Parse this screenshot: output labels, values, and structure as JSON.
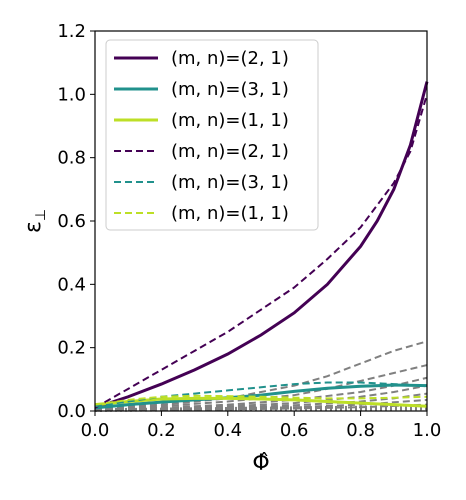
{
  "chart_data": {
    "type": "line",
    "xlabel": "Φ̂",
    "ylabel": "ε",
    "ylabel_subscript": "⊥",
    "xlim": [
      0.0,
      1.0
    ],
    "ylim": [
      0.0,
      1.2
    ],
    "x_ticks": [
      "0.0",
      "0.2",
      "0.4",
      "0.6",
      "0.8",
      "1.0"
    ],
    "y_ticks": [
      "0.0",
      "0.2",
      "0.4",
      "0.6",
      "0.8",
      "1.0",
      "1.2"
    ],
    "grid": false,
    "legend_position": "top-left",
    "legend": [
      {
        "label": "(m, n)=(2, 1)",
        "style": "solid",
        "color": "#440154"
      },
      {
        "label": "(m, n)=(3, 1)",
        "style": "solid",
        "color": "#21918c"
      },
      {
        "label": "(m, n)=(1, 1)",
        "style": "solid",
        "color": "#bddf26"
      },
      {
        "label": "(m, n)=(2, 1)",
        "style": "dashed",
        "color": "#440154"
      },
      {
        "label": "(m, n)=(3, 1)",
        "style": "dashed",
        "color": "#21918c"
      },
      {
        "label": "(m, n)=(1, 1)",
        "style": "dashed",
        "color": "#bddf26"
      }
    ],
    "series": [
      {
        "name": "(m, n)=(2, 1)",
        "style": "solid",
        "color": "#440154",
        "width": 3,
        "x": [
          0.0,
          0.1,
          0.2,
          0.3,
          0.4,
          0.5,
          0.6,
          0.7,
          0.8,
          0.85,
          0.9,
          0.95,
          1.0
        ],
        "y": [
          0.01,
          0.045,
          0.085,
          0.13,
          0.18,
          0.24,
          0.31,
          0.4,
          0.52,
          0.6,
          0.7,
          0.84,
          1.04
        ]
      },
      {
        "name": "(m, n)=(3, 1)",
        "style": "solid",
        "color": "#21918c",
        "width": 3,
        "x": [
          0.0,
          0.1,
          0.2,
          0.3,
          0.4,
          0.5,
          0.6,
          0.7,
          0.8,
          0.9,
          1.0
        ],
        "y": [
          0.01,
          0.02,
          0.028,
          0.035,
          0.042,
          0.05,
          0.062,
          0.072,
          0.078,
          0.082,
          0.08
        ]
      },
      {
        "name": "(m, n)=(1, 1)",
        "style": "solid",
        "color": "#bddf26",
        "width": 3,
        "x": [
          0.0,
          0.1,
          0.2,
          0.3,
          0.4,
          0.5,
          0.6,
          0.7,
          0.8,
          0.9,
          1.0
        ],
        "y": [
          0.02,
          0.03,
          0.038,
          0.04,
          0.04,
          0.038,
          0.035,
          0.03,
          0.025,
          0.02,
          0.015
        ]
      },
      {
        "name": "(m, n)=(2, 1)",
        "style": "dashed",
        "color": "#440154",
        "width": 2,
        "x": [
          0.0,
          0.1,
          0.2,
          0.3,
          0.4,
          0.5,
          0.6,
          0.7,
          0.8,
          0.9,
          0.95,
          1.0
        ],
        "y": [
          0.01,
          0.07,
          0.13,
          0.19,
          0.25,
          0.32,
          0.39,
          0.48,
          0.58,
          0.72,
          0.82,
          1.0
        ]
      },
      {
        "name": "(m, n)=(3, 1)",
        "style": "dashed",
        "color": "#21918c",
        "width": 2,
        "x": [
          0.0,
          0.1,
          0.2,
          0.3,
          0.4,
          0.5,
          0.6,
          0.7,
          0.8,
          0.9,
          1.0
        ],
        "y": [
          0.015,
          0.03,
          0.045,
          0.055,
          0.065,
          0.075,
          0.085,
          0.09,
          0.09,
          0.085,
          0.08
        ]
      },
      {
        "name": "(m, n)=(1, 1)",
        "style": "dashed",
        "color": "#bddf26",
        "width": 2,
        "x": [
          0.0,
          0.1,
          0.2,
          0.3,
          0.4,
          0.5,
          0.6,
          0.7,
          0.8,
          0.9,
          1.0
        ],
        "y": [
          0.02,
          0.035,
          0.045,
          0.048,
          0.047,
          0.045,
          0.042,
          0.04,
          0.04,
          0.042,
          0.045
        ]
      }
    ],
    "gray_series": [
      {
        "style": "dashed",
        "x": [
          0.0,
          0.2,
          0.4,
          0.6,
          0.7,
          0.8,
          0.9,
          1.0
        ],
        "y": [
          0.01,
          0.02,
          0.04,
          0.08,
          0.11,
          0.15,
          0.19,
          0.22
        ]
      },
      {
        "style": "dashed",
        "x": [
          0.0,
          0.2,
          0.4,
          0.6,
          0.7,
          0.8,
          0.9,
          1.0
        ],
        "y": [
          0.005,
          0.015,
          0.03,
          0.05,
          0.07,
          0.095,
          0.12,
          0.145
        ]
      },
      {
        "style": "dashed",
        "x": [
          0.0,
          0.2,
          0.4,
          0.6,
          0.8,
          0.9,
          1.0
        ],
        "y": [
          0.005,
          0.01,
          0.02,
          0.035,
          0.06,
          0.08,
          0.105
        ]
      },
      {
        "style": "dashed",
        "x": [
          0.0,
          0.2,
          0.4,
          0.6,
          0.8,
          0.9,
          1.0
        ],
        "y": [
          0.003,
          0.008,
          0.015,
          0.025,
          0.045,
          0.06,
          0.08
        ]
      },
      {
        "style": "dashed",
        "x": [
          0.0,
          0.2,
          0.4,
          0.6,
          0.8,
          0.9,
          1.0
        ],
        "y": [
          0.002,
          0.005,
          0.01,
          0.018,
          0.03,
          0.04,
          0.055
        ]
      },
      {
        "style": "dashed",
        "x": [
          0.0,
          0.2,
          0.4,
          0.6,
          0.8,
          1.0
        ],
        "y": [
          0.002,
          0.004,
          0.008,
          0.012,
          0.02,
          0.035
        ]
      },
      {
        "style": "dashed",
        "x": [
          0.0,
          0.2,
          0.4,
          0.6,
          0.8,
          1.0
        ],
        "y": [
          0.001,
          0.003,
          0.005,
          0.008,
          0.012,
          0.02
        ]
      },
      {
        "style": "dotted",
        "x": [
          0.0,
          0.2,
          0.4,
          0.6,
          0.8,
          1.0
        ],
        "y": [
          0.004,
          0.006,
          0.008,
          0.01,
          0.012,
          0.014
        ]
      },
      {
        "style": "dotted",
        "x": [
          0.0,
          0.2,
          0.4,
          0.6,
          0.8,
          1.0
        ],
        "y": [
          0.002,
          0.003,
          0.004,
          0.005,
          0.006,
          0.007
        ]
      }
    ]
  }
}
